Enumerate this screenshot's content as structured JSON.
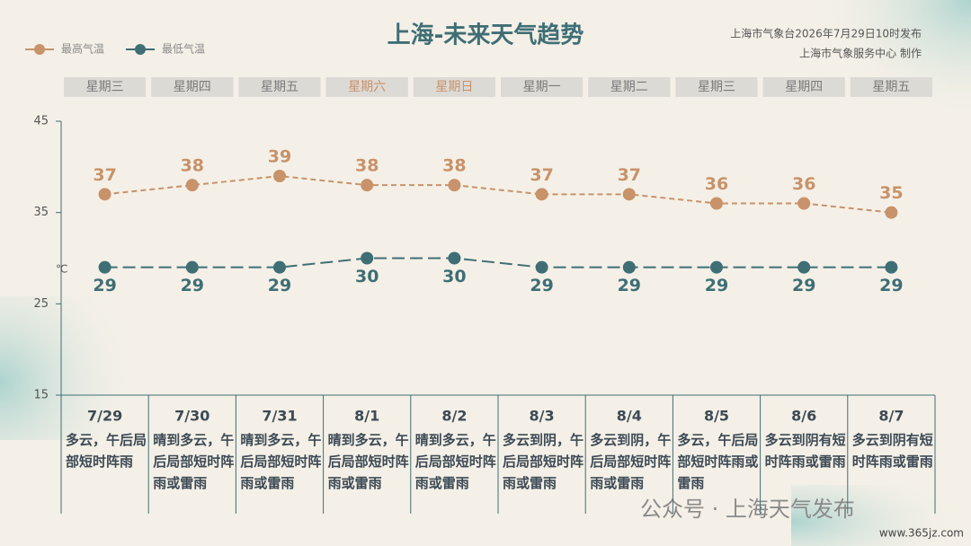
{
  "chart_data": {
    "type": "line",
    "title": "上海-未来天气趋势",
    "publisher": [
      "上海市气象台2026年7月29日10时发布",
      "上海市气象服务中心 制作"
    ],
    "weekdays": [
      "星期三",
      "星期四",
      "星期五",
      "星期六",
      "星期日",
      "星期一",
      "星期二",
      "星期三",
      "星期四",
      "星期五"
    ],
    "weekday_colors": [
      "#7a7a7a",
      "#7a7a7a",
      "#7a7a7a",
      "#c8926a",
      "#c8926a",
      "#7a7a7a",
      "#7a7a7a",
      "#7a7a7a",
      "#7a7a7a",
      "#7a7a7a"
    ],
    "categories": [
      "7/29",
      "7/30",
      "7/31",
      "8/1",
      "8/2",
      "8/3",
      "8/4",
      "8/5",
      "8/6",
      "8/7"
    ],
    "descriptions": [
      "多云，午后局部短时阵雨",
      "晴到多云，午后局部短时阵雨或雷雨",
      "晴到多云，午后局部短时阵雨或雷雨",
      "晴到多云，午后局部短时阵雨或雷雨",
      "晴到多云，午后局部短时阵雨或雷雨",
      "多云到阴，午后局部短时阵雨或雷雨",
      "多云到阴，午后局部短时阵雨或雷雨",
      "多云，午后局部短时阵雨或雷雨",
      "多云到阴有短时阵雨或雷雨",
      "多云到阴有短时阵雨或雷雨"
    ],
    "y_unit": "℃",
    "ylim": [
      15,
      45
    ],
    "yticks": [
      15,
      25,
      35,
      45
    ],
    "series": [
      {
        "name": "最高气温",
        "color": "#c8926a",
        "values": [
          37,
          38,
          39,
          38,
          38,
          37,
          37,
          36,
          36,
          35
        ]
      },
      {
        "name": "最低气温",
        "color": "#3f6e75",
        "values": [
          29,
          29,
          29,
          30,
          30,
          29,
          29,
          29,
          29,
          29
        ]
      }
    ],
    "watermark": "公众号 · 上海天气发布",
    "website": "www.365jz.com"
  }
}
